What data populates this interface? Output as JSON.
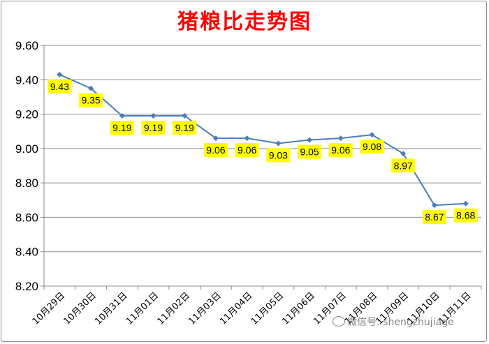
{
  "chart_data": {
    "type": "line",
    "title": "猪粮比走势图",
    "categories": [
      "10月29日",
      "10月30日",
      "10月31日",
      "11月01日",
      "11月02日",
      "11月03日",
      "11月04日",
      "11月05日",
      "11月06日",
      "11月07日",
      "11月08日",
      "11月09日",
      "11月10日",
      "11月11日"
    ],
    "series": [
      {
        "values": [
          9.43,
          9.35,
          9.19,
          9.19,
          9.19,
          9.06,
          9.06,
          9.03,
          9.05,
          9.06,
          9.08,
          8.97,
          8.67,
          8.68
        ]
      }
    ],
    "ylim": [
      8.2,
      9.6
    ],
    "yticks": [
      "8.20",
      "8.40",
      "8.60",
      "8.80",
      "9.00",
      "9.20",
      "9.40",
      "9.60"
    ],
    "grid": true,
    "legend": "none",
    "line_color": "#4a7ebb",
    "label_bg_color": "#ffff00"
  },
  "watermark": {
    "text": "微信号: shengzhujiage"
  }
}
